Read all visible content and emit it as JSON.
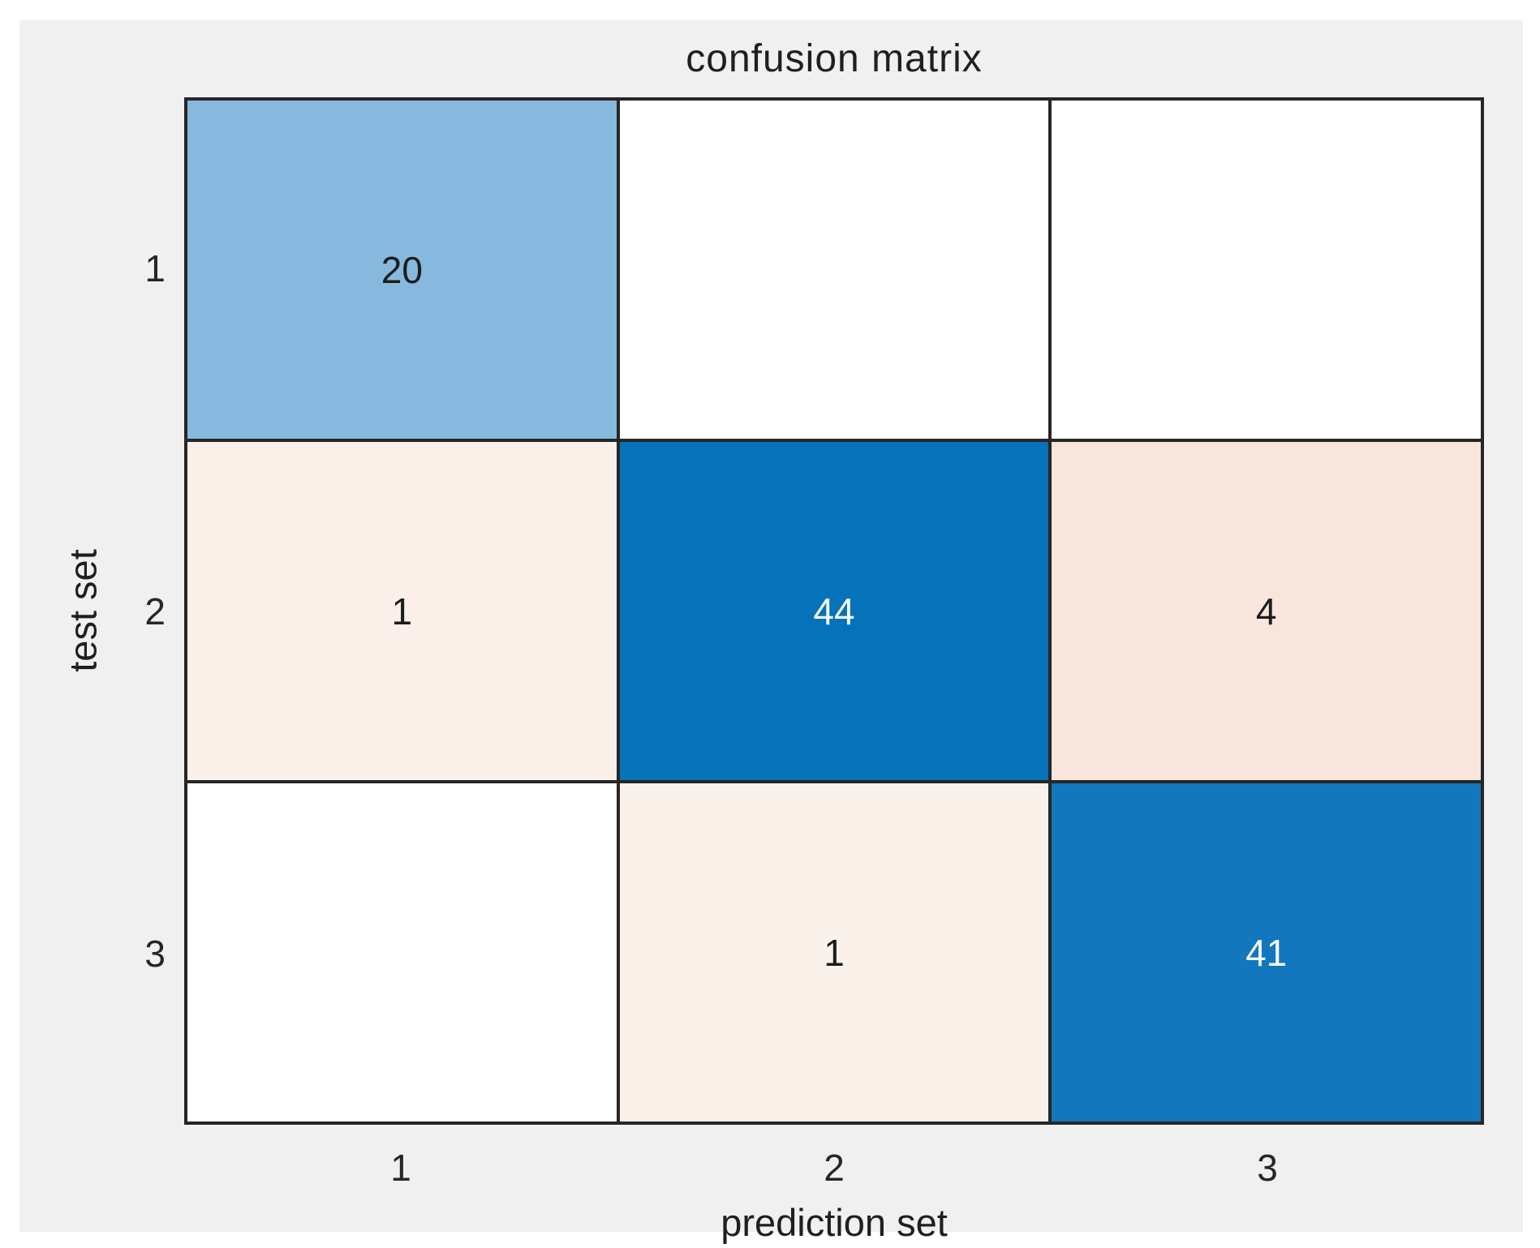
{
  "figure": {
    "background": "#f0f0f0",
    "page_background": "#ffffff",
    "axes_line_color": "#262626",
    "text_color": "#1f1f1f"
  },
  "chart_data": {
    "type": "heatmap",
    "title": "confusion matrix",
    "xlabel": "prediction set",
    "ylabel": "test set",
    "x_ticks": [
      "1",
      "2",
      "3"
    ],
    "y_ticks": [
      "1",
      "2",
      "3"
    ],
    "categories_x": [
      1,
      2,
      3
    ],
    "categories_y": [
      1,
      2,
      3
    ],
    "matrix": [
      [
        20,
        0,
        0
      ],
      [
        1,
        44,
        4
      ],
      [
        0,
        1,
        41
      ]
    ],
    "grid": false,
    "legend": "none",
    "colors": {
      "diagonal_low_blue": "#86b9dd",
      "diagonal_high_blue": "#0572ba",
      "offdiag_low_pink": "#faefe9",
      "offdiag_mid_pink": "#f8e5db",
      "zero_white": "#ffffff",
      "cell_text_dark": "#1c1c1c",
      "cell_text_light": "#f5f8fb"
    },
    "cells": [
      {
        "row": 1,
        "col": 1,
        "value": 20,
        "label": "20",
        "bg": "#86b9dd",
        "fg": "#1c1c1c"
      },
      {
        "row": 1,
        "col": 2,
        "value": 0,
        "label": "",
        "bg": "#ffffff",
        "fg": "#1c1c1c"
      },
      {
        "row": 1,
        "col": 3,
        "value": 0,
        "label": "",
        "bg": "#ffffff",
        "fg": "#1c1c1c"
      },
      {
        "row": 2,
        "col": 1,
        "value": 1,
        "label": "1",
        "bg": "#faefe9",
        "fg": "#1c1c1c"
      },
      {
        "row": 2,
        "col": 2,
        "value": 44,
        "label": "44",
        "bg": "#0572ba",
        "fg": "#f5f8fb"
      },
      {
        "row": 2,
        "col": 3,
        "value": 4,
        "label": "4",
        "bg": "#f8e5db",
        "fg": "#1c1c1c"
      },
      {
        "row": 3,
        "col": 1,
        "value": 0,
        "label": "",
        "bg": "#ffffff",
        "fg": "#1c1c1c"
      },
      {
        "row": 3,
        "col": 2,
        "value": 1,
        "label": "1",
        "bg": "#fbf1eb",
        "fg": "#1c1c1c"
      },
      {
        "row": 3,
        "col": 3,
        "value": 41,
        "label": "41",
        "bg": "#1277bd",
        "fg": "#f5f8fb"
      }
    ]
  }
}
